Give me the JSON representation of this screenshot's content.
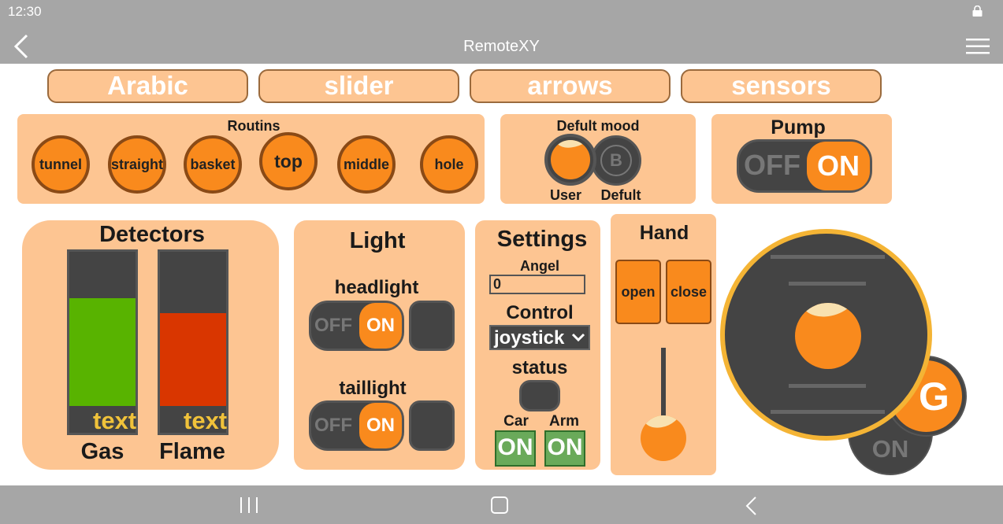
{
  "status_bar": {
    "time": "12:30",
    "icon": "lock-icon"
  },
  "app_bar": {
    "title": "RemoteXY",
    "back_icon": "back-arrow-icon",
    "menu_icon": "hamburger-menu-icon"
  },
  "tabs": [
    {
      "label": "Arabic"
    },
    {
      "label": "slider"
    },
    {
      "label": "arrows"
    },
    {
      "label": "sensors"
    }
  ],
  "routins": {
    "title": "Routins",
    "buttons": [
      "tunnel",
      "straight",
      "basket",
      "top",
      "middle",
      "hole"
    ]
  },
  "defult_mood": {
    "title": "Defult mood",
    "option_user": "User",
    "option_defult": "Defult",
    "b_badge": "B",
    "selected": "User"
  },
  "pump": {
    "title": "Pump",
    "off": "OFF",
    "on": "ON",
    "state": "ON"
  },
  "detectors": {
    "title": "Detectors",
    "gas": {
      "label": "Gas",
      "value_text": "text",
      "level": 0.7,
      "color": "#58b300"
    },
    "flame": {
      "label": "Flame",
      "value_text": "text",
      "level": 0.6,
      "color": "#d93600"
    }
  },
  "light": {
    "title": "Light",
    "headlight": {
      "label": "headlight",
      "off": "OFF",
      "on": "ON",
      "state": "ON"
    },
    "taillight": {
      "label": "taillight",
      "off": "OFF",
      "on": "ON",
      "state": "ON"
    }
  },
  "settings": {
    "title": "Settings",
    "angel_label": "Angel",
    "angel_value": "0",
    "control_label": "Control",
    "control_value": "joystick",
    "status_label": "status",
    "car_label": "Car",
    "arm_label": "Arm",
    "car_button": "ON",
    "arm_button": "ON"
  },
  "hand": {
    "title": "Hand",
    "open": "open",
    "close": "close",
    "slider_level": 0.0
  },
  "joystick": {
    "g_button": "G",
    "on_button": "ON"
  },
  "colors": {
    "panel": "#fdc592",
    "accent": "#f98a1d",
    "dark": "#444444",
    "green": "#6aaa5a",
    "gold_ring": "#f4b435"
  },
  "nav_bar": {
    "recents_icon": "recents-icon",
    "home_icon": "home-icon",
    "back_icon": "nav-back-icon"
  }
}
